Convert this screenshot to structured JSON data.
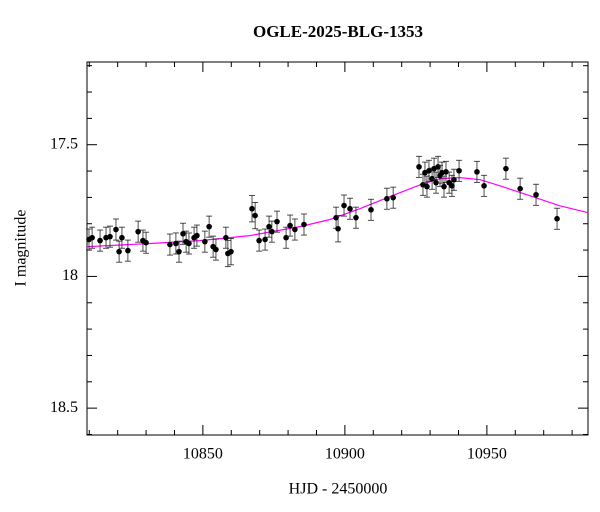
{
  "chart_data": {
    "type": "scatter",
    "title": "OGLE-2025-BLG-1353",
    "x_label": "HJD - 2450000",
    "y_label": "I magnitude",
    "xlim": [
      10809.2,
      10985.6
    ],
    "ylim": [
      18.602,
      17.186
    ],
    "xticks": [
      10850,
      10900,
      10950
    ],
    "yticks": [
      17.5,
      18,
      18.5
    ],
    "xminorticks": [
      10810,
      10820,
      10830,
      10840,
      10860,
      10870,
      10880,
      10890,
      10910,
      10920,
      10930,
      10940,
      10960,
      10970,
      10980
    ],
    "yminorticks": [
      17.2,
      17.3,
      17.4,
      17.6,
      17.7,
      17.8,
      17.9,
      18.1,
      18.2,
      18.3,
      18.4,
      18.6
    ],
    "points": {
      "color": "#000000",
      "x": [
        10809.9,
        10811.0,
        10813.8,
        10815.9,
        10817.3,
        10819.4,
        10820.5,
        10821.5,
        10823.6,
        10827.2,
        10828.9,
        10830.0,
        10838.4,
        10840.5,
        10841.6,
        10843.0,
        10844.1,
        10845.1,
        10846.9,
        10847.9,
        10850.7,
        10852.2,
        10853.6,
        10854.6,
        10858.1,
        10858.8,
        10859.9,
        10867.3,
        10868.4,
        10869.8,
        10871.9,
        10873.3,
        10874.3,
        10876.1,
        10879.3,
        10880.7,
        10882.4,
        10885.6,
        10896.9,
        10897.6,
        10899.7,
        10901.8,
        10903.9,
        10909.2,
        10914.8,
        10917.0,
        10926.1,
        10927.5,
        10928.2,
        10928.9,
        10929.6,
        10930.7,
        10931.4,
        10932.1,
        10932.8,
        10933.5,
        10934.2,
        10934.9,
        10935.6,
        10936.7,
        10937.7,
        10938.4,
        10940.2,
        10946.5,
        10949.0,
        10956.7,
        10961.7,
        10967.3,
        10974.7
      ],
      "values": [
        17.86,
        17.853,
        17.864,
        17.853,
        17.849,
        17.822,
        17.906,
        17.853,
        17.902,
        17.83,
        17.864,
        17.872,
        17.879,
        17.875,
        17.906,
        17.838,
        17.868,
        17.875,
        17.853,
        17.845,
        17.868,
        17.811,
        17.887,
        17.898,
        17.853,
        17.913,
        17.906,
        17.743,
        17.769,
        17.864,
        17.86,
        17.811,
        17.83,
        17.792,
        17.853,
        17.807,
        17.822,
        17.803,
        17.777,
        17.819,
        17.731,
        17.743,
        17.777,
        17.747,
        17.705,
        17.701,
        17.584,
        17.652,
        17.606,
        17.659,
        17.599,
        17.629,
        17.591,
        17.644,
        17.584,
        17.618,
        17.606,
        17.659,
        17.603,
        17.644,
        17.656,
        17.633,
        17.599,
        17.603,
        17.656,
        17.591,
        17.667,
        17.69,
        17.781
      ],
      "errors": [
        0.04,
        0.04,
        0.04,
        0.04,
        0.04,
        0.04,
        0.04,
        0.04,
        0.04,
        0.04,
        0.04,
        0.04,
        0.04,
        0.04,
        0.04,
        0.04,
        0.04,
        0.04,
        0.04,
        0.04,
        0.04,
        0.04,
        0.04,
        0.04,
        0.04,
        0.05,
        0.05,
        0.05,
        0.05,
        0.04,
        0.04,
        0.04,
        0.04,
        0.04,
        0.04,
        0.04,
        0.04,
        0.04,
        0.04,
        0.05,
        0.04,
        0.04,
        0.04,
        0.04,
        0.04,
        0.04,
        0.04,
        0.04,
        0.04,
        0.04,
        0.04,
        0.04,
        0.04,
        0.04,
        0.04,
        0.04,
        0.04,
        0.04,
        0.04,
        0.04,
        0.04,
        0.04,
        0.04,
        0.04,
        0.04,
        0.04,
        0.04,
        0.04,
        0.04
      ]
    },
    "model": {
      "color": "#ff00ff",
      "x": [
        10809.2,
        10831.4,
        10849.0,
        10866.6,
        10884.2,
        10894.8,
        10905.3,
        10915.9,
        10926.5,
        10933.5,
        10940.6,
        10947.6,
        10954.6,
        10965.2,
        10975.7,
        10985.6
      ],
      "values": [
        17.887,
        17.875,
        17.864,
        17.845,
        17.811,
        17.784,
        17.743,
        17.697,
        17.652,
        17.629,
        17.625,
        17.633,
        17.656,
        17.694,
        17.732,
        17.758
      ]
    }
  }
}
